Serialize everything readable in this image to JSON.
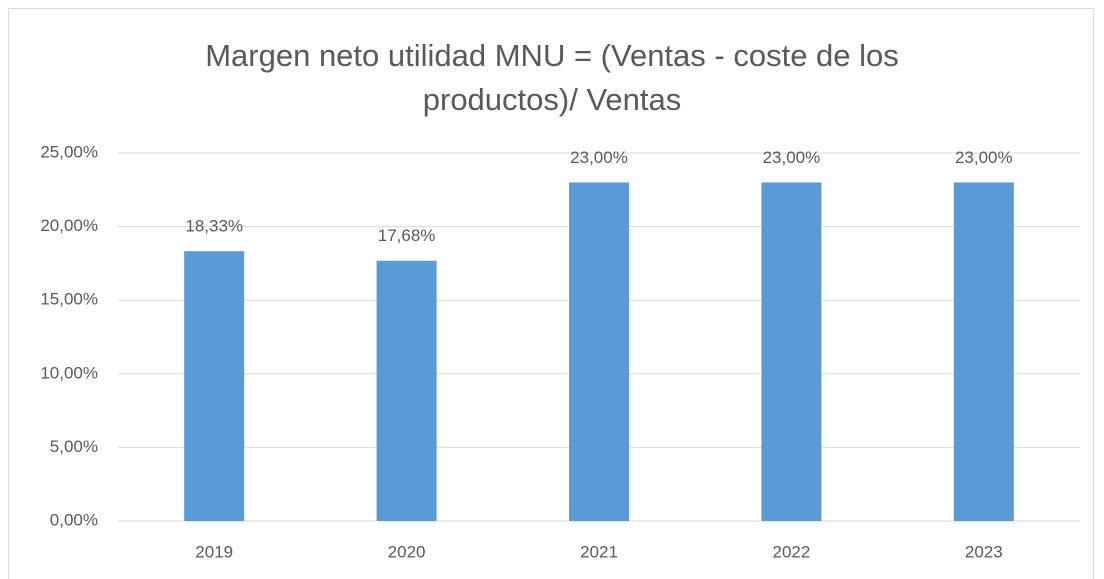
{
  "chart_data": {
    "type": "bar",
    "title": "Margen neto utilidad MNU = (Ventas - coste de los productos)/ Ventas",
    "categories": [
      "2019",
      "2020",
      "2021",
      "2022",
      "2023"
    ],
    "values": [
      18.33,
      17.68,
      23,
      23,
      23
    ],
    "value_labels": [
      "18,33%",
      "17,68%",
      "23,00%",
      "23,00%",
      "23,00%"
    ],
    "color": "#5b9bd5",
    "ylim": [
      0,
      25
    ],
    "yticks": [
      {
        "value": 0,
        "label": "0,00%"
      },
      {
        "value": 5,
        "label": "5,00%"
      },
      {
        "value": 10,
        "label": "10,00%"
      },
      {
        "value": 15,
        "label": "15,00%"
      },
      {
        "value": 20,
        "label": "20,00%"
      },
      {
        "value": 25,
        "label": "25,00%"
      }
    ],
    "grid": true
  }
}
